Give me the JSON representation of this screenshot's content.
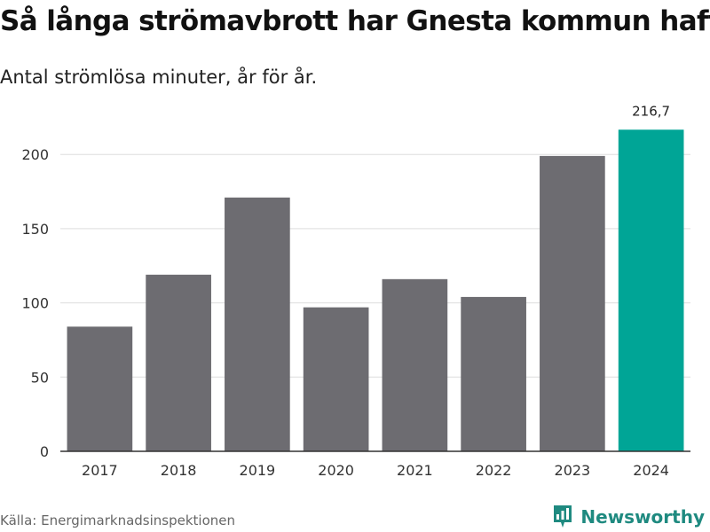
{
  "title": "Så långa strömavbrott har Gnesta kommun haft",
  "subtitle": "Antal strömlösa minuter, år för år.",
  "source": "Källa: Energimarknadsinspektionen",
  "brand": "Newsworthy",
  "colors": {
    "bar": "#6d6c71",
    "highlight": "#00a596",
    "grid": "#dddddd",
    "axis": "#333333",
    "brand": "#1f8a80"
  },
  "chart_data": {
    "type": "bar",
    "title": "Så långa strömavbrott har Gnesta kommun haft",
    "subtitle": "Antal strömlösa minuter, år för år.",
    "xlabel": "",
    "ylabel": "",
    "categories": [
      "2017",
      "2018",
      "2019",
      "2020",
      "2021",
      "2022",
      "2023",
      "2024"
    ],
    "values": [
      84,
      119,
      171,
      97,
      116,
      104,
      199,
      216.7
    ],
    "highlight_index": 7,
    "data_labels": [
      {
        "index": 7,
        "text": "216,7"
      }
    ],
    "ylim": [
      0,
      230
    ],
    "yticks": [
      0,
      50,
      100,
      150,
      200
    ],
    "grid": true,
    "legend": "none"
  }
}
